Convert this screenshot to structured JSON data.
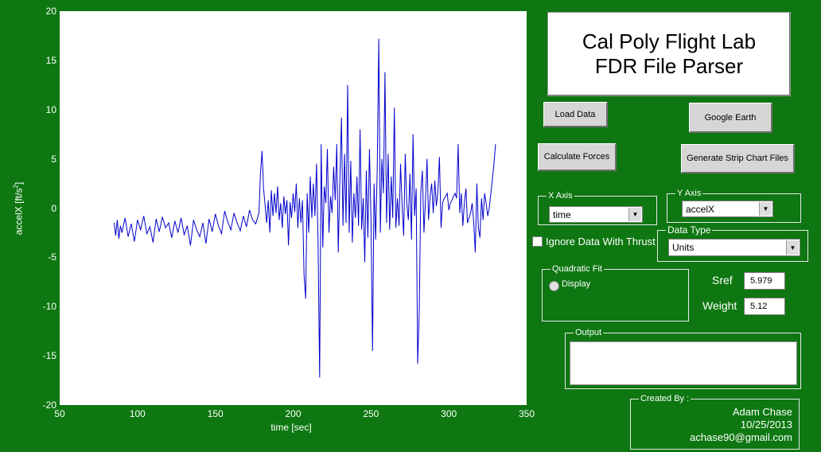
{
  "title": {
    "line1": "Cal Poly Flight Lab",
    "line2": "FDR File Parser"
  },
  "buttons": {
    "load": "Load Data",
    "google_earth": "Google Earth",
    "calculate": "Calculate Forces",
    "strip_chart": "Generate Strip Chart Files"
  },
  "x_axis": {
    "group_label": "X Axis",
    "selected": "time"
  },
  "y_axis": {
    "group_label": "Y Axis",
    "selected": "accelX"
  },
  "ignore_thrust": {
    "label": "Ignore Data With Thrust",
    "checked": false
  },
  "data_type": {
    "group_label": "Data Type",
    "selected": "Units"
  },
  "quadratic_fit": {
    "group_label": "Quadratic Fit",
    "option": "Display",
    "selected": false
  },
  "params": {
    "sref_label": "Sref",
    "sref_value": "5.979",
    "weight_label": "Weight",
    "weight_value": "5.12"
  },
  "output": {
    "group_label": "Output",
    "value": ""
  },
  "credits": {
    "group_label": "Created By :",
    "name": "Adam Chase",
    "date": "10/25/2013",
    "email": "achase90@gmail.com"
  },
  "colors": {
    "background": "#0e7711",
    "line": "#0000cc",
    "plot_bg": "#ffffff"
  },
  "chart_data": {
    "type": "line",
    "xlabel": "time [sec]",
    "ylabel_base": "accelX [ft/s",
    "ylabel_sup": "2",
    "ylabel_end": "]",
    "xlim": [
      50,
      350
    ],
    "ylim": [
      -20,
      20
    ],
    "xticks": [
      "50",
      "100",
      "150",
      "200",
      "250",
      "300",
      "350"
    ],
    "yticks": [
      "20",
      "15",
      "10",
      "5",
      "0",
      "-5",
      "-10",
      "-15",
      "-20"
    ],
    "grid": false,
    "series": [
      {
        "color": "#0000cc",
        "x": [
          85,
          86,
          87,
          88,
          89,
          90,
          92,
          94,
          96,
          98,
          100,
          102,
          104,
          106,
          108,
          110,
          112,
          114,
          116,
          118,
          120,
          122,
          124,
          126,
          128,
          130,
          132,
          134,
          136,
          138,
          140,
          142,
          144,
          146,
          148,
          150,
          152,
          154,
          156,
          158,
          160,
          162,
          164,
          166,
          168,
          170,
          172,
          174,
          176,
          178,
          179,
          180,
          181,
          182,
          183,
          184,
          185,
          186,
          187,
          188,
          189,
          190,
          191,
          192,
          193,
          194,
          195,
          196,
          197,
          198,
          199,
          200,
          201,
          202,
          203,
          204,
          205,
          206,
          207,
          208,
          209,
          210,
          211,
          212,
          213,
          214,
          215,
          216,
          217,
          218,
          219,
          220,
          221,
          222,
          223,
          224,
          225,
          226,
          227,
          228,
          229,
          230,
          231,
          232,
          233,
          234,
          235,
          236,
          237,
          238,
          239,
          240,
          241,
          242,
          243,
          244,
          245,
          246,
          247,
          248,
          249,
          250,
          251,
          252,
          253,
          254,
          255,
          256,
          257,
          258,
          259,
          260,
          261,
          262,
          263,
          264,
          265,
          266,
          267,
          268,
          269,
          270,
          271,
          272,
          273,
          274,
          275,
          276,
          277,
          278,
          279,
          280,
          281,
          282,
          283,
          284,
          285,
          286,
          287,
          288,
          289,
          290,
          291,
          292,
          293,
          294,
          295,
          296,
          297,
          298,
          299,
          300,
          301,
          302,
          303,
          304,
          305,
          306,
          307,
          308,
          309,
          310,
          311,
          312,
          313,
          314,
          315,
          316,
          317,
          318,
          319,
          320,
          321,
          322,
          323,
          324,
          325,
          326,
          327,
          328,
          329,
          330
        ],
        "y": [
          -1.5,
          -2.8,
          -1.2,
          -3.1,
          -1.8,
          -2.5,
          -1.0,
          -2.9,
          -1.6,
          -3.4,
          -1.2,
          -2.2,
          -0.8,
          -2.6,
          -1.9,
          -3.5,
          -1.1,
          -2.4,
          -0.9,
          -2.0,
          -1.5,
          -3.0,
          -1.3,
          -2.5,
          -1.0,
          -2.7,
          -1.8,
          -3.8,
          -1.2,
          -2.2,
          -2.9,
          -1.5,
          -3.6,
          -1.1,
          -2.4,
          -0.6,
          -1.8,
          -2.6,
          -0.3,
          -1.4,
          -2.2,
          -0.5,
          -1.5,
          -2.3,
          -0.8,
          -1.9,
          -0.2,
          -1.2,
          -1.6,
          -0.5,
          3.5,
          5.8,
          2.0,
          0.2,
          -1.5,
          0.8,
          -2.5,
          1.8,
          -0.8,
          1.5,
          -0.5,
          2.2,
          -1.2,
          0.5,
          -2.0,
          1.2,
          -0.6,
          0.8,
          -3.8,
          0.6,
          -1.0,
          1.5,
          -0.4,
          2.5,
          -2.0,
          1.0,
          -1.5,
          0.8,
          -6.8,
          -9.2,
          1.5,
          -2.5,
          3.2,
          -1.0,
          2.5,
          -0.8,
          4.5,
          -3.5,
          -17.2,
          6.5,
          -4.0,
          2.2,
          0.5,
          6.0,
          -2.5,
          1.2,
          -0.5,
          4.2,
          0.8,
          6.5,
          -4.5,
          2.8,
          9.2,
          -1.8,
          5.5,
          -1.5,
          12.5,
          -2.5,
          4.8,
          -3.5,
          1.5,
          -1.0,
          3.2,
          -1.8,
          8.0,
          -2.2,
          1.0,
          -5.5,
          3.8,
          -3.0,
          6.0,
          -1.0,
          -14.5,
          2.5,
          -3.2,
          4.0,
          17.2,
          -2.5,
          5.0,
          1.5,
          13.8,
          -1.5,
          5.5,
          -2.2,
          3.2,
          -1.0,
          10.2,
          -2.0,
          1.0,
          -1.8,
          4.5,
          0.2,
          -2.8,
          5.5,
          0.5,
          -1.2,
          3.5,
          -3.2,
          7.5,
          -0.8,
          2.0,
          -15.8,
          -10.5,
          1.5,
          3.8,
          -2.5,
          0.8,
          5.0,
          -1.2,
          1.2,
          2.5,
          -0.5,
          2.8,
          0.2,
          1.8,
          5.2,
          -2.0,
          0.5,
          1.0,
          1.2,
          1.5,
          -0.2,
          0.5,
          0.8,
          1.2,
          1.5,
          1.0,
          6.5,
          -0.5,
          1.5,
          -1.8,
          0.5,
          2.0,
          -1.5,
          -1.0,
          -0.5,
          0.5,
          -1.5,
          -4.5,
          2.5,
          -2.0,
          -3.0,
          1.0,
          -1.2,
          1.5,
          0.5,
          -0.8,
          0.0,
          1.5,
          3.0,
          4.5,
          6.5
        ]
      }
    ]
  }
}
